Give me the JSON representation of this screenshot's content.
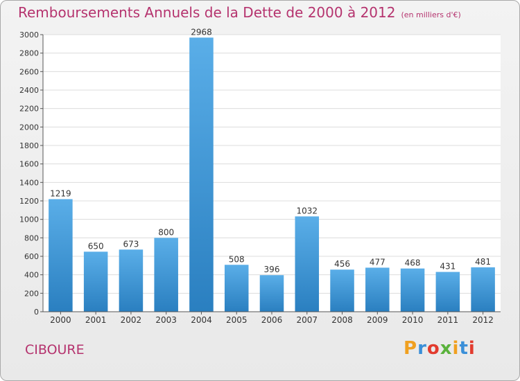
{
  "title": "Remboursements Annuels de la Dette de 2000 à 2012",
  "unit_note": "(en milliers d'€)",
  "city": "CIBOURE",
  "logo": {
    "letters": [
      "P",
      "r",
      "o",
      "x",
      "i",
      "t",
      "i"
    ],
    "colors": [
      "#f0a020",
      "#3a8fd8",
      "#e23b2e",
      "#5ab23c",
      "#f0a020",
      "#3a8fd8",
      "#e23b2e"
    ]
  },
  "colors": {
    "title": "#b5336e",
    "bar_top": "#5aaee8",
    "bar_bottom": "#2a7fc0",
    "grid": "#dcdcdc"
  },
  "chart_data": {
    "type": "bar",
    "title": "Remboursements Annuels de la Dette de 2000 à 2012",
    "categories": [
      "2000",
      "2001",
      "2002",
      "2003",
      "2004",
      "2005",
      "2006",
      "2007",
      "2008",
      "2009",
      "2010",
      "2011",
      "2012"
    ],
    "values": [
      1219,
      650,
      673,
      800,
      2968,
      508,
      396,
      1032,
      456,
      477,
      468,
      431,
      481
    ],
    "ylim": [
      0,
      3000
    ],
    "yticks": [
      0,
      200,
      400,
      600,
      800,
      1000,
      1200,
      1400,
      1600,
      1800,
      2000,
      2200,
      2400,
      2600,
      2800,
      3000
    ],
    "grid": true,
    "xlabel": "",
    "ylabel": ""
  }
}
